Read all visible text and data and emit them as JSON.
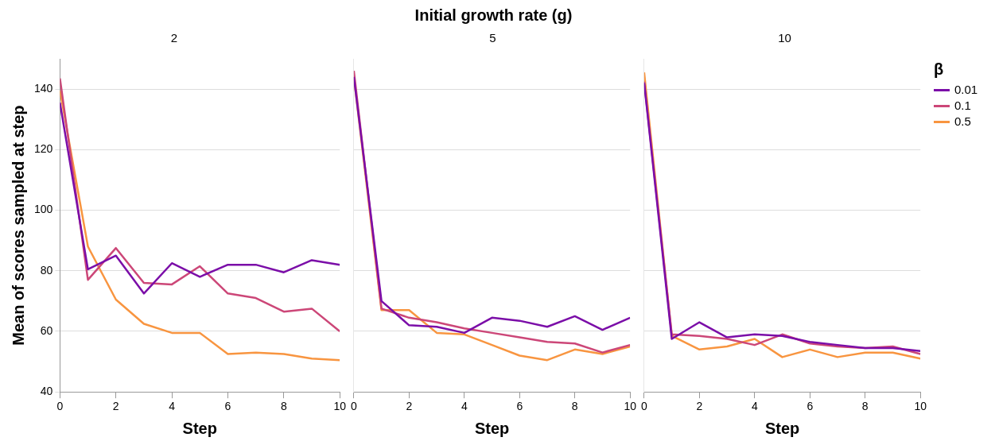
{
  "chart_data": [
    {
      "type": "line",
      "subtitle": "2",
      "xlabel": "Step",
      "ylabel": "Mean of scores sampled at step",
      "x": [
        0,
        1,
        2,
        3,
        4,
        5,
        6,
        7,
        8,
        9,
        10
      ],
      "xlim": [
        0,
        10
      ],
      "xticks": [
        0,
        2,
        4,
        6,
        8,
        10
      ],
      "ylim": [
        40,
        150
      ],
      "yticks": [
        40,
        60,
        80,
        100,
        120,
        140
      ],
      "grid": "y",
      "marker": "none",
      "series": [
        {
          "color": "#7b0ea8",
          "values": [
            135.5,
            80.5,
            85,
            72.5,
            82.5,
            78,
            82,
            82,
            79.5,
            83.5,
            82
          ]
        },
        {
          "color": "#cc4778",
          "values": [
            143.5,
            77,
            87.5,
            76,
            75.5,
            81.5,
            72.5,
            71,
            66.5,
            67.5,
            60
          ]
        },
        {
          "color": "#f89540",
          "values": [
            139.5,
            88,
            70.5,
            62.5,
            59.5,
            59.5,
            52.5,
            53,
            52.5,
            51,
            50.5
          ]
        }
      ]
    },
    {
      "type": "line",
      "title": "Initial growth rate (g)",
      "subtitle": "5",
      "xlabel": "Step",
      "x": [
        0,
        1,
        2,
        3,
        4,
        5,
        6,
        7,
        8,
        9,
        10
      ],
      "xlim": [
        0,
        10
      ],
      "xticks": [
        0,
        2,
        4,
        6,
        8,
        10
      ],
      "ylim": [
        40,
        150
      ],
      "yticks": [
        40,
        60,
        80,
        100,
        120,
        140
      ],
      "grid": "y",
      "marker": "none",
      "tick_labels": "x",
      "series": [
        {
          "color": "#7b0ea8",
          "values": [
            144,
            70,
            62,
            61.5,
            59.5,
            64.5,
            63.5,
            61.5,
            65,
            60.5,
            64.5
          ]
        },
        {
          "color": "#cc4778",
          "values": [
            146,
            67.5,
            64.5,
            63,
            61,
            59.5,
            58,
            56.5,
            56,
            53,
            55.5
          ]
        },
        {
          "color": "#f89540",
          "values": [
            144,
            67,
            67,
            59.5,
            59,
            55.5,
            52,
            50.5,
            54,
            52.5,
            55
          ]
        }
      ]
    },
    {
      "type": "line",
      "subtitle": "10",
      "xlabel": "Step",
      "legend_title": "β",
      "x": [
        0,
        1,
        2,
        3,
        4,
        5,
        6,
        7,
        8,
        9,
        10
      ],
      "xlim": [
        0,
        10
      ],
      "xticks": [
        0,
        2,
        4,
        6,
        8,
        10
      ],
      "ylim": [
        40,
        150
      ],
      "yticks": [
        40,
        60,
        80,
        100,
        120,
        140
      ],
      "grid": "y",
      "marker": "none",
      "tick_labels": "x",
      "legend": "top right",
      "series": [
        {
          "name": "0.01",
          "color": "#7b0ea8",
          "values": [
            142,
            57.5,
            63,
            58,
            59,
            58.5,
            56.5,
            55.5,
            54.5,
            54.5,
            53.5
          ]
        },
        {
          "name": "0.1",
          "color": "#cc4778",
          "values": [
            142.5,
            59,
            58.5,
            57.5,
            55.5,
            59,
            56,
            55,
            54.5,
            55,
            52.5
          ]
        },
        {
          "name": "0.5",
          "color": "#f89540",
          "values": [
            145.5,
            58.5,
            54,
            55,
            57.5,
            51.5,
            54,
            51.5,
            53,
            53,
            51
          ]
        }
      ]
    }
  ]
}
